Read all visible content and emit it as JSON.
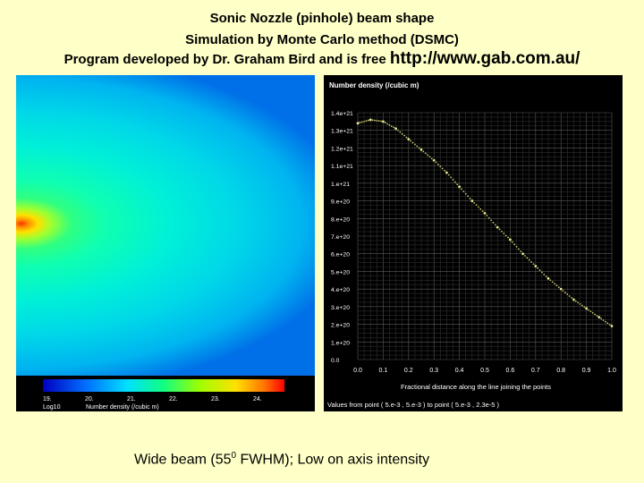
{
  "header": {
    "line1": "Sonic Nozzle (pinhole) beam shape",
    "line2": "Simulation by Monte Carlo method (DSMC)",
    "line3": "Program developed by Dr. Graham Bird and is free",
    "url": "http://www.gab.com.au/"
  },
  "caption": {
    "before": "Wide beam (55",
    "sup": "0",
    "after": " FWHM); Low on axis intensity"
  },
  "heatmap": {
    "type": "heatmap",
    "colorbar_ticks": [
      "19.",
      "20.",
      "21.",
      "22.",
      "23.",
      "24."
    ],
    "colorbar_label_left": "Log10",
    "colorbar_label": "Number density (/cubic m)"
  },
  "chart_data": {
    "type": "scatter",
    "title": "Number density (/cubic m)",
    "xlabel": "Fractional distance along the line joining the points",
    "footer": "Values from point ( 5.e-3 , 5.e-3 ) to point ( 5.e-3 , 2.3e-5 )",
    "x_ticks": [
      "0.0",
      "0.1",
      "0.2",
      "0.3",
      "0.4",
      "0.5",
      "0.6",
      "0.7",
      "0.8",
      "0.9",
      "1.0"
    ],
    "y_ticks": [
      "0.0",
      "1.e+20",
      "2.e+20",
      "3.e+20",
      "4.e+20",
      "5.e+20",
      "6.e+20",
      "7.e+20",
      "8.e+20",
      "9.e+20",
      "1.e+21",
      "1.1e+21",
      "1.2e+21",
      "1.3e+21",
      "1.4e+21"
    ],
    "xlim": [
      0,
      1
    ],
    "ylim": [
      0,
      1.4e+21
    ],
    "grid": true,
    "series": [
      {
        "x": [
          0.0,
          0.05,
          0.1,
          0.15,
          0.2,
          0.25,
          0.3,
          0.35,
          0.4,
          0.45,
          0.5,
          0.55,
          0.6,
          0.65,
          0.7,
          0.75,
          0.8,
          0.85,
          0.9,
          0.95,
          1.0
        ],
        "y": [
          1.34e+21,
          1.36e+21,
          1.35e+21,
          1.31e+21,
          1.25e+21,
          1.19e+21,
          1.13e+21,
          1.06e+21,
          9.8e+20,
          9e+20,
          8.3e+20,
          7.5e+20,
          6.8e+20,
          6e+20,
          5.3e+20,
          4.6e+20,
          4e+20,
          3.4e+20,
          2.9e+20,
          2.4e+20,
          1.9e+20
        ]
      }
    ]
  }
}
